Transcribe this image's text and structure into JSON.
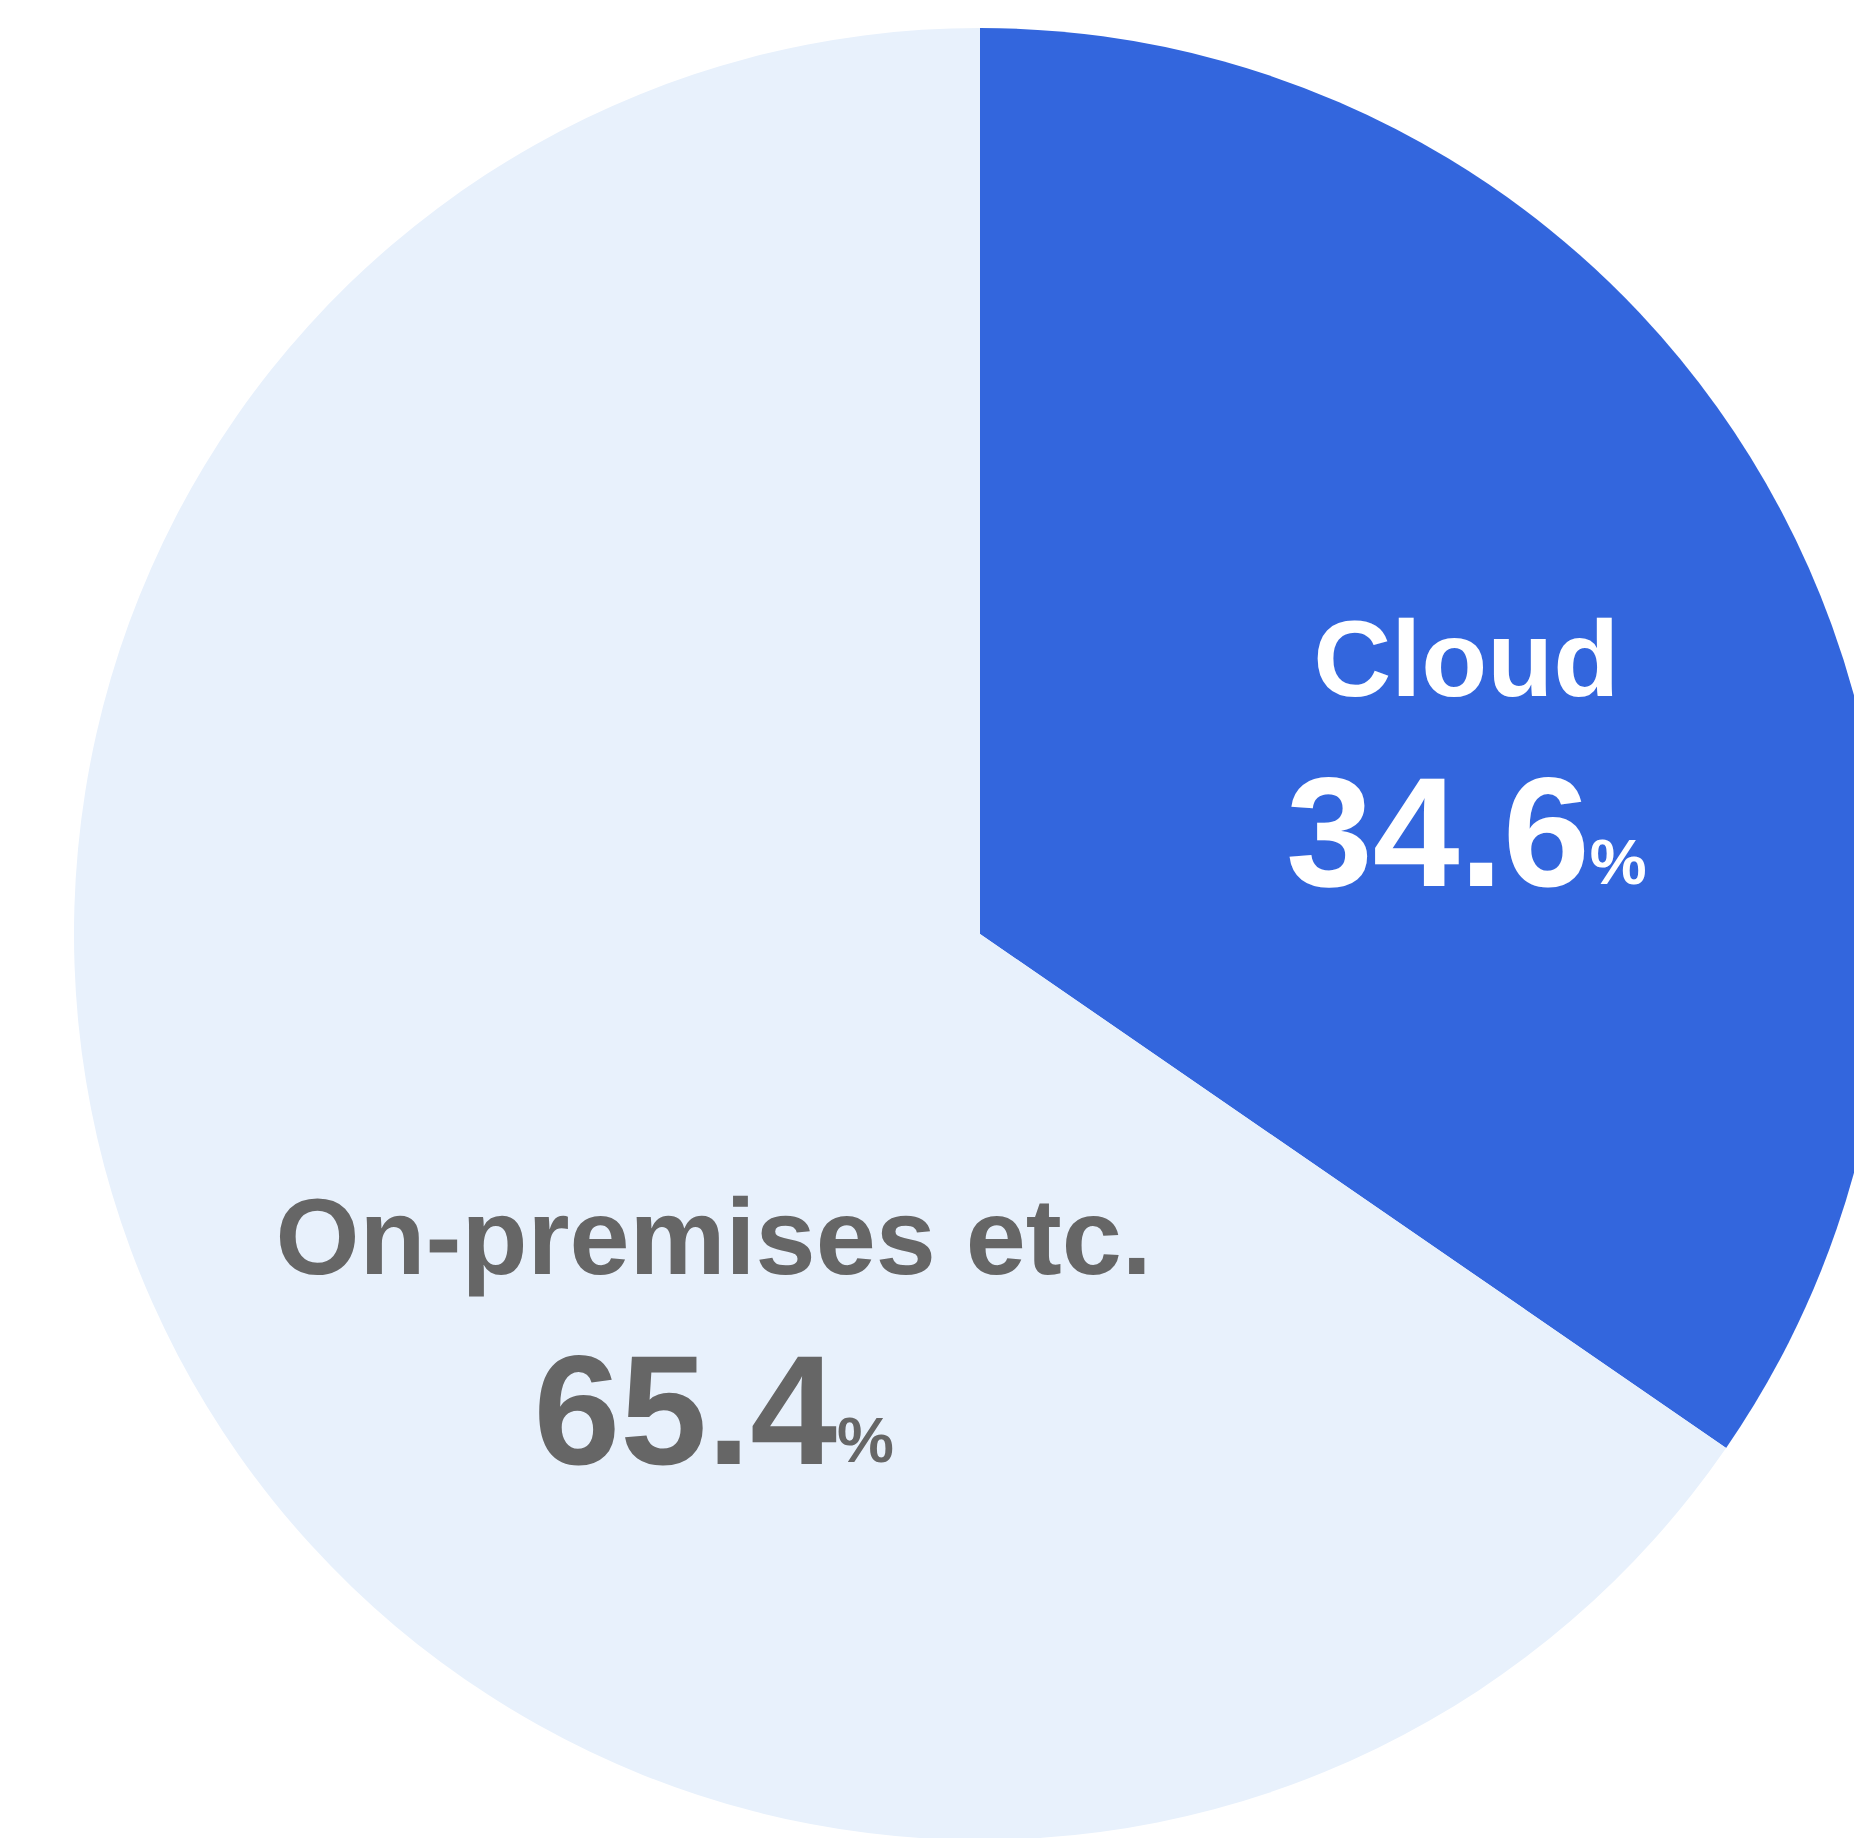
{
  "chart_data": {
    "type": "pie",
    "categories": [
      "Cloud",
      "On-premises etc."
    ],
    "values": [
      34.6,
      65.4
    ],
    "colors": [
      "#3366dd",
      "#e8f1fc"
    ],
    "value_labels": [
      "34.6%",
      "65.4%"
    ],
    "legend": false
  }
}
